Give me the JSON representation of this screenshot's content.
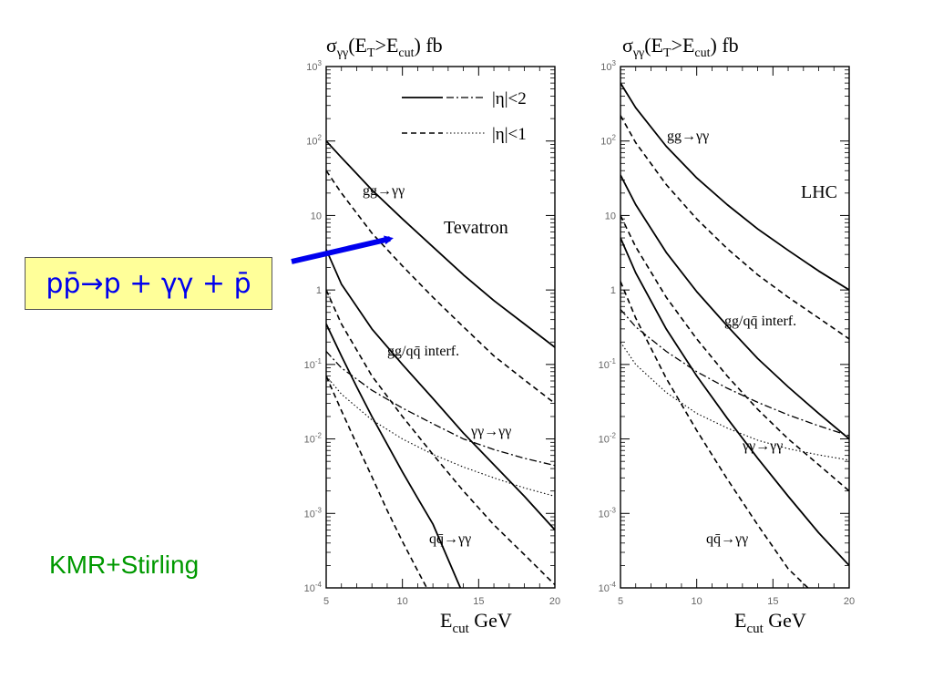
{
  "slide": {
    "process_label": "pp̄→p + γγ + p̄",
    "credit": "KMR+Stirling",
    "arrow_color": "#0000ee",
    "box_color": "#ffff99",
    "credit_color": "#009900"
  },
  "legend": [
    {
      "text": "|η|<2",
      "styles": [
        "solid",
        "dashdot"
      ]
    },
    {
      "text": "|η|<1",
      "styles": [
        "dashed",
        "dotted"
      ]
    }
  ],
  "chart_data": [
    {
      "type": "line",
      "title": "σγγ(ET>Ecut) fb",
      "ylabel": "σγγ(ET>Ecut) fb",
      "xlabel": "Ecut GeV",
      "xlim": [
        5,
        20
      ],
      "ylim": [
        0.0001,
        1000
      ],
      "yscale": "log",
      "xticks": [
        5,
        10,
        15,
        20
      ],
      "yticks": [
        0.0001,
        0.001,
        0.01,
        0.1,
        1,
        10,
        100,
        1000
      ],
      "ytick_labels": [
        "10^-4",
        "10^-3",
        "10^-2",
        "10^-1",
        "1",
        "10",
        "10^2",
        "10^3"
      ],
      "location_label": "Tevatron",
      "annotations": [
        {
          "text": "gg→γγ",
          "x": 8.7,
          "y": 28
        },
        {
          "text": "gg/qq̄ interf.",
          "x": 9.6,
          "y": 0.16
        },
        {
          "text": "γγ→γγ",
          "x": 14.5,
          "y": 0.0125
        },
        {
          "text": "qq̄→γγ",
          "x": 12.8,
          "y": 0.00015
        }
      ],
      "series": [
        {
          "style": "solid",
          "x": [
            5,
            6,
            8,
            10,
            12,
            14,
            16,
            18,
            20
          ],
          "y": [
            100,
            60,
            22,
            9,
            3.8,
            1.6,
            0.72,
            0.35,
            0.17
          ]
        },
        {
          "style": "dashed",
          "x": [
            5,
            6,
            8,
            10,
            12,
            14,
            16,
            18,
            20
          ],
          "y": [
            40,
            20,
            5.8,
            2.1,
            0.8,
            0.32,
            0.13,
            0.062,
            0.03
          ]
        },
        {
          "style": "solid",
          "x": [
            5,
            6,
            8,
            10,
            12,
            14,
            16,
            18,
            20
          ],
          "y": [
            3.5,
            1.2,
            0.3,
            0.1,
            0.035,
            0.012,
            0.0045,
            0.0017,
            0.0006
          ]
        },
        {
          "style": "dashed",
          "x": [
            5,
            6,
            8,
            10,
            12,
            14,
            16,
            18,
            20
          ],
          "y": [
            1.0,
            0.35,
            0.07,
            0.02,
            0.0062,
            0.002,
            0.0007,
            0.00028,
            0.00011
          ]
        },
        {
          "style": "dashdot",
          "x": [
            5,
            6,
            8,
            10,
            12,
            14,
            16,
            18,
            20
          ],
          "y": [
            0.15,
            0.09,
            0.045,
            0.026,
            0.016,
            0.01,
            0.0072,
            0.0055,
            0.0044
          ]
        },
        {
          "style": "dotted",
          "x": [
            5,
            6,
            8,
            10,
            12,
            14,
            16,
            18,
            20
          ],
          "y": [
            0.07,
            0.04,
            0.018,
            0.01,
            0.0062,
            0.0042,
            0.003,
            0.0022,
            0.0017
          ]
        },
        {
          "style": "solid",
          "x": [
            5,
            6,
            7,
            8,
            9,
            10,
            11,
            12,
            13,
            13.8
          ],
          "y": [
            0.35,
            0.13,
            0.05,
            0.02,
            0.0085,
            0.0036,
            0.0016,
            0.00072,
            0.00024,
            0.0001
          ]
        },
        {
          "style": "dashed",
          "x": [
            5,
            6,
            7,
            8,
            9,
            10,
            11,
            11.6
          ],
          "y": [
            0.07,
            0.024,
            0.0085,
            0.0031,
            0.0011,
            0.00042,
            0.00017,
            0.0001
          ]
        }
      ]
    },
    {
      "type": "line",
      "title": "σγγ(ET>Ecut) fb",
      "ylabel": "σγγ(ET>Ecut) fb",
      "xlabel": "Ecut GeV",
      "xlim": [
        5,
        20
      ],
      "ylim": [
        0.0001,
        1000
      ],
      "yscale": "log",
      "xticks": [
        5,
        10,
        15,
        20
      ],
      "yticks": [
        0.0001,
        0.001,
        0.01,
        0.1,
        1,
        10,
        100,
        1000
      ],
      "ytick_labels": [
        "10^-4",
        "10^-3",
        "10^-2",
        "10^-1",
        "1",
        "10",
        "10^2",
        "10^3"
      ],
      "location_label": "LHC",
      "annotations": [
        {
          "text": "gg→γγ",
          "x": 8.2,
          "y": 110
        },
        {
          "text": "gg/qq̄ interf.",
          "x": 12.1,
          "y": 0.8
        },
        {
          "text": "γγ→γγ",
          "x": 14.0,
          "y": 0.0055
        },
        {
          "text": "qq̄→γγ",
          "x": 11.2,
          "y": 0.00075
        }
      ],
      "series": [
        {
          "style": "solid",
          "x": [
            5,
            6,
            8,
            10,
            12,
            14,
            16,
            18,
            20
          ],
          "y": [
            600,
            280,
            85,
            32,
            14,
            6.6,
            3.4,
            1.8,
            1.0
          ]
        },
        {
          "style": "dashed",
          "x": [
            5,
            6,
            8,
            10,
            12,
            14,
            16,
            18,
            20
          ],
          "y": [
            220,
            95,
            26,
            9,
            3.6,
            1.6,
            0.8,
            0.42,
            0.22
          ]
        },
        {
          "style": "solid",
          "x": [
            5,
            6,
            8,
            10,
            12,
            14,
            16,
            18,
            20
          ],
          "y": [
            35,
            14,
            3.2,
            0.95,
            0.33,
            0.12,
            0.05,
            0.022,
            0.01
          ]
        },
        {
          "style": "dashed",
          "x": [
            5,
            6,
            8,
            10,
            12,
            14,
            16,
            18,
            20
          ],
          "y": [
            10,
            3.8,
            0.8,
            0.22,
            0.07,
            0.025,
            0.01,
            0.0045,
            0.002
          ]
        },
        {
          "style": "solid",
          "x": [
            5,
            6,
            8,
            10,
            12,
            14,
            16,
            18,
            20
          ],
          "y": [
            5,
            1.7,
            0.3,
            0.07,
            0.019,
            0.0055,
            0.0017,
            0.00055,
            0.0002
          ]
        },
        {
          "style": "dashed",
          "x": [
            5,
            6,
            8,
            10,
            12,
            14,
            16,
            17.3
          ],
          "y": [
            1.3,
            0.42,
            0.065,
            0.013,
            0.0029,
            0.0007,
            0.00018,
            0.0001
          ]
        },
        {
          "style": "dashdot",
          "x": [
            5,
            6,
            8,
            10,
            12,
            14,
            16,
            18,
            20
          ],
          "y": [
            0.55,
            0.32,
            0.15,
            0.08,
            0.048,
            0.031,
            0.021,
            0.015,
            0.011
          ]
        },
        {
          "style": "dotted",
          "x": [
            5,
            6,
            8,
            10,
            12,
            14,
            16,
            18,
            20
          ],
          "y": [
            0.2,
            0.1,
            0.042,
            0.022,
            0.014,
            0.0096,
            0.0074,
            0.0061,
            0.0052
          ]
        }
      ]
    }
  ]
}
